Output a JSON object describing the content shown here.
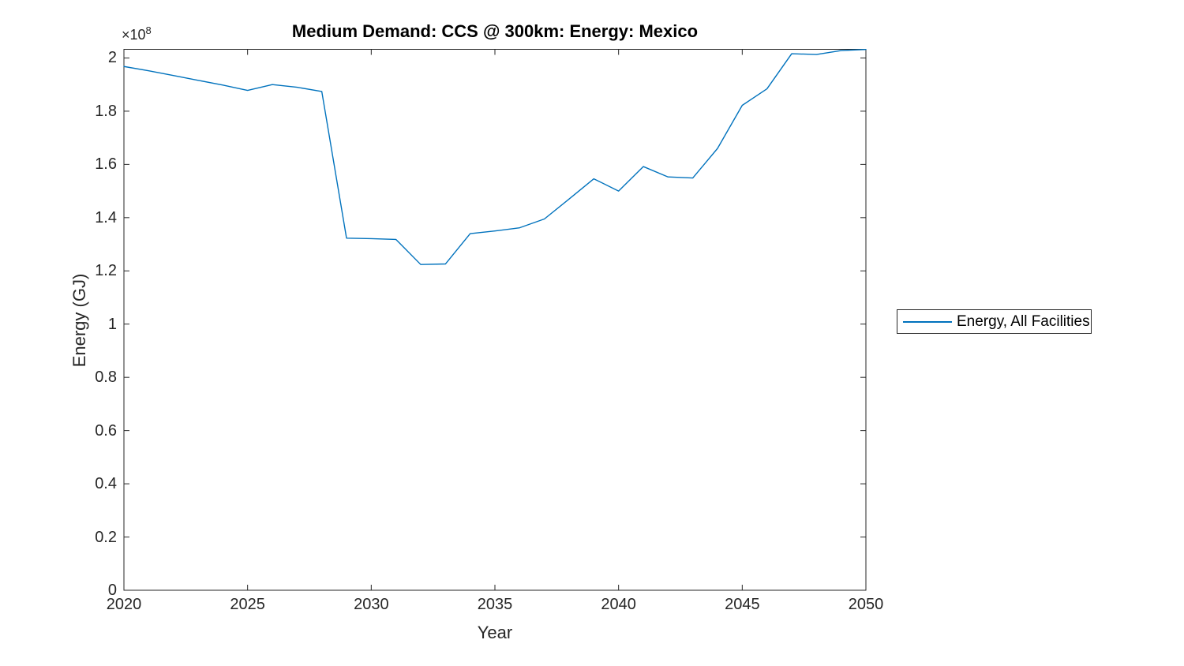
{
  "chart_data": {
    "type": "line",
    "title": "Medium Demand: CCS @ 300km: Energy: Mexico",
    "xlabel": "Year",
    "ylabel": "Energy (GJ)",
    "y_exponent_base": "×10",
    "y_exponent_power": "8",
    "xlim": [
      2020,
      2050
    ],
    "ylim": [
      0,
      203250000
    ],
    "x_tick_values": [
      2020,
      2025,
      2030,
      2035,
      2040,
      2045,
      2050
    ],
    "x_tick_labels": [
      "2020",
      "2025",
      "2030",
      "2035",
      "2040",
      "2045",
      "2050"
    ],
    "y_tick_values": [
      0,
      20000000,
      40000000,
      60000000,
      80000000,
      100000000,
      120000000,
      140000000,
      160000000,
      180000000,
      200000000
    ],
    "y_tick_labels": [
      "0",
      "0.2",
      "0.4",
      "0.6",
      "0.8",
      "1",
      "1.2",
      "1.4",
      "1.6",
      "1.8",
      "2"
    ],
    "grid": false,
    "box": true,
    "tick_direction": "in",
    "legend": {
      "label": "Energy, All Facilities",
      "position": "right-outside"
    },
    "x": [
      2020,
      2021,
      2022,
      2023,
      2024,
      2025,
      2026,
      2027,
      2028,
      2029,
      2030,
      2031,
      2032,
      2033,
      2034,
      2035,
      2036,
      2037,
      2038,
      2039,
      2040,
      2041,
      2042,
      2043,
      2044,
      2045,
      2046,
      2047,
      2048,
      2049,
      2050
    ],
    "series": [
      {
        "name": "Energy, All Facilities",
        "color": "#0072BD",
        "values": [
          196800000,
          195200000,
          193400000,
          191600000,
          189800000,
          187800000,
          190000000,
          189000000,
          187400000,
          132300000,
          132100000,
          131800000,
          122400000,
          122600000,
          134000000,
          135000000,
          136200000,
          139500000,
          147000000,
          154600000,
          150000000,
          159200000,
          155300000,
          154900000,
          166000000,
          182200000,
          188400000,
          201600000,
          201300000,
          202800000,
          203200000
        ]
      }
    ],
    "colors": {
      "background": "#ffffff",
      "axes": "#262626",
      "title_text": "#000000",
      "tick_text": "#262626",
      "series_line": "#0072BD"
    }
  }
}
